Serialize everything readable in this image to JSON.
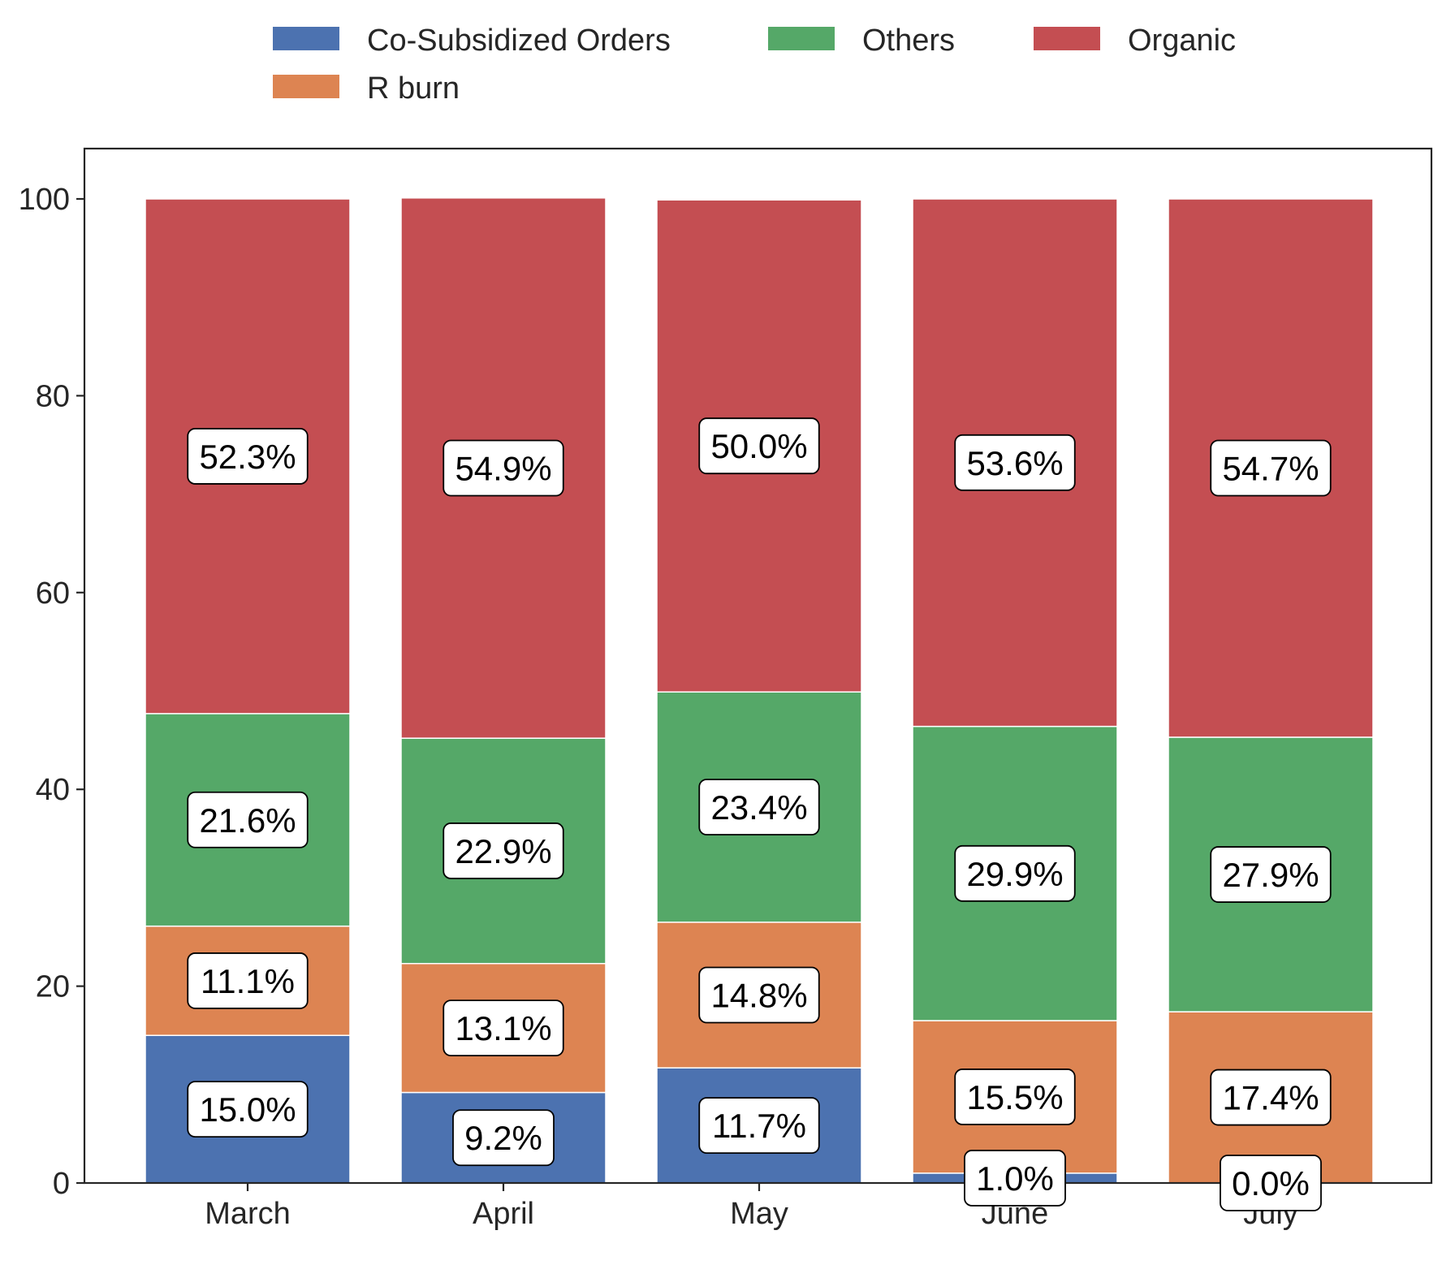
{
  "chart_data": {
    "type": "bar",
    "stacked": true,
    "categories": [
      "March",
      "April",
      "May",
      "June",
      "July"
    ],
    "series": [
      {
        "name": "Co-Subsidized Orders",
        "color": "#4C72B0",
        "values": [
          15.0,
          9.2,
          11.7,
          1.0,
          0.0
        ],
        "labels": [
          "15.0%",
          "9.2%",
          "11.7%",
          "1.0%",
          "0.0%"
        ]
      },
      {
        "name": "R burn",
        "color": "#DD8452",
        "values": [
          11.1,
          13.1,
          14.8,
          15.5,
          17.4
        ],
        "labels": [
          "11.1%",
          "13.1%",
          "14.8%",
          "15.5%",
          "17.4%"
        ]
      },
      {
        "name": "Others",
        "color": "#55A868",
        "values": [
          21.6,
          22.9,
          23.4,
          29.9,
          27.9
        ],
        "labels": [
          "21.6%",
          "22.9%",
          "23.4%",
          "29.9%",
          "27.9%"
        ]
      },
      {
        "name": "Organic",
        "color": "#C44E52",
        "values": [
          52.3,
          54.9,
          50.0,
          53.6,
          54.7
        ],
        "labels": [
          "52.3%",
          "54.9%",
          "50.0%",
          "53.6%",
          "54.7%"
        ]
      }
    ],
    "ylim": [
      0,
      105
    ],
    "yticks": [
      0,
      20,
      40,
      60,
      80,
      100
    ],
    "ytick_labels": [
      "0",
      "20",
      "40",
      "60",
      "80",
      "100"
    ],
    "title": "",
    "xlabel": "",
    "ylabel": "",
    "grid": false,
    "legend_position": "top-center"
  }
}
